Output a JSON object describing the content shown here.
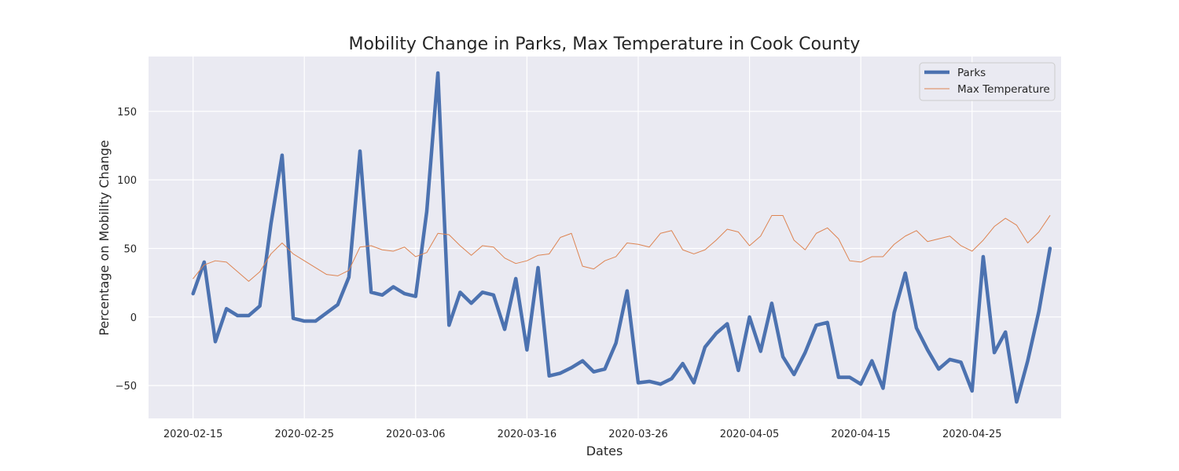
{
  "chart_data": {
    "type": "line",
    "title": "Mobility Change in Parks, Max Temperature in Cook County",
    "xlabel": "Dates",
    "ylabel": "Percentage on Mobility Change",
    "x_start": "2020-02-15",
    "x_ticks": [
      "2020-02-15",
      "2020-02-25",
      "2020-03-06",
      "2020-03-16",
      "2020-03-26",
      "2020-04-05",
      "2020-04-15",
      "2020-04-25"
    ],
    "y_ticks": [
      -50,
      0,
      50,
      100,
      150
    ],
    "xlim": [
      "2020-02-11",
      "2020-05-03"
    ],
    "ylim": [
      -74,
      190
    ],
    "grid": true,
    "legend_position": "top-right",
    "series": [
      {
        "name": "Parks",
        "color": "#4c72b0",
        "values": [
          17,
          40,
          -18,
          6,
          1,
          1,
          8,
          68,
          118,
          -1,
          -3,
          -3,
          3,
          9,
          29,
          121,
          18,
          16,
          22,
          17,
          15,
          77,
          178,
          -6,
          18,
          10,
          18,
          16,
          -9,
          28,
          -24,
          36,
          -43,
          -41,
          -37,
          -32,
          -40,
          -38,
          -19,
          19,
          -48,
          -47,
          -49,
          -45,
          -34,
          -48,
          -22,
          -12,
          -5,
          -39,
          0,
          -25,
          10,
          -29,
          -42,
          -26,
          -6,
          -4,
          -44,
          -44,
          -49,
          -32,
          -52,
          3,
          32,
          -8,
          -24,
          -38,
          -31,
          -33,
          -54,
          44,
          -26,
          -11,
          -62,
          -32,
          4,
          50
        ]
      },
      {
        "name": "Max Temperature",
        "color": "#dd8452",
        "values": [
          28,
          38,
          41,
          40,
          33,
          26,
          33,
          46,
          54,
          46,
          41,
          36,
          31,
          30,
          34,
          51,
          52,
          49,
          48,
          51,
          44,
          47,
          61,
          60,
          52,
          45,
          52,
          51,
          43,
          39,
          41,
          45,
          46,
          58,
          61,
          37,
          35,
          41,
          44,
          54,
          53,
          51,
          61,
          63,
          49,
          46,
          49,
          56,
          64,
          62,
          52,
          59,
          74,
          74,
          56,
          49,
          61,
          65,
          57,
          41,
          40,
          44,
          44,
          53,
          59,
          63,
          55,
          57,
          59,
          52,
          48,
          56,
          66,
          72,
          67,
          54,
          62,
          74
        ]
      }
    ]
  }
}
